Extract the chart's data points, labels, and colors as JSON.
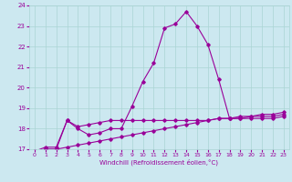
{
  "xlabel": "Windchill (Refroidissement éolien,°C)",
  "bg_color": "#cce8f0",
  "grid_color": "#aad4d4",
  "line_color": "#990099",
  "x_values": [
    0,
    1,
    2,
    3,
    4,
    5,
    6,
    7,
    8,
    9,
    10,
    11,
    12,
    13,
    14,
    15,
    16,
    17,
    18,
    19,
    20,
    21,
    22,
    23
  ],
  "line1": [
    16.9,
    17.1,
    17.1,
    18.4,
    18.0,
    17.7,
    17.8,
    18.0,
    18.0,
    19.1,
    20.3,
    21.2,
    22.9,
    23.1,
    23.7,
    23.0,
    22.1,
    20.4,
    18.5,
    18.5,
    18.5,
    18.5,
    18.5,
    18.6
  ],
  "line2": [
    16.9,
    17.0,
    17.0,
    18.4,
    18.1,
    18.2,
    18.3,
    18.4,
    18.4,
    18.4,
    18.4,
    18.4,
    18.4,
    18.4,
    18.4,
    18.4,
    18.4,
    18.5,
    18.5,
    18.5,
    18.6,
    18.6,
    18.6,
    18.7
  ],
  "line3": [
    16.9,
    17.0,
    17.0,
    17.1,
    17.2,
    17.3,
    17.4,
    17.5,
    17.6,
    17.7,
    17.8,
    17.9,
    18.0,
    18.1,
    18.2,
    18.3,
    18.4,
    18.5,
    18.5,
    18.6,
    18.6,
    18.7,
    18.7,
    18.8
  ],
  "ylim": [
    17,
    24
  ],
  "yticks": [
    17,
    18,
    19,
    20,
    21,
    22,
    23,
    24
  ],
  "xlim": [
    -0.5,
    23.5
  ],
  "xticks": [
    0,
    1,
    2,
    3,
    4,
    5,
    6,
    7,
    8,
    9,
    10,
    11,
    12,
    13,
    14,
    15,
    16,
    17,
    18,
    19,
    20,
    21,
    22,
    23
  ]
}
